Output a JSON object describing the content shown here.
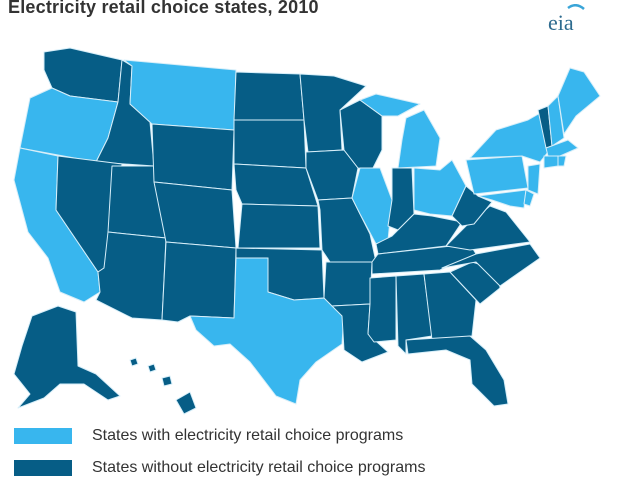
{
  "header": {
    "title": "Electricity retail choice states, 2010"
  },
  "logo": {
    "text": "eia"
  },
  "colors": {
    "choice": "#38b6ee",
    "no_choice": "#065d86",
    "border": "#d6eef9"
  },
  "legend": [
    {
      "label": "States with electricity retail choice programs",
      "color": "#38b6ee"
    },
    {
      "label": "States without electricity retail choice programs",
      "color": "#065d86"
    }
  ]
}
